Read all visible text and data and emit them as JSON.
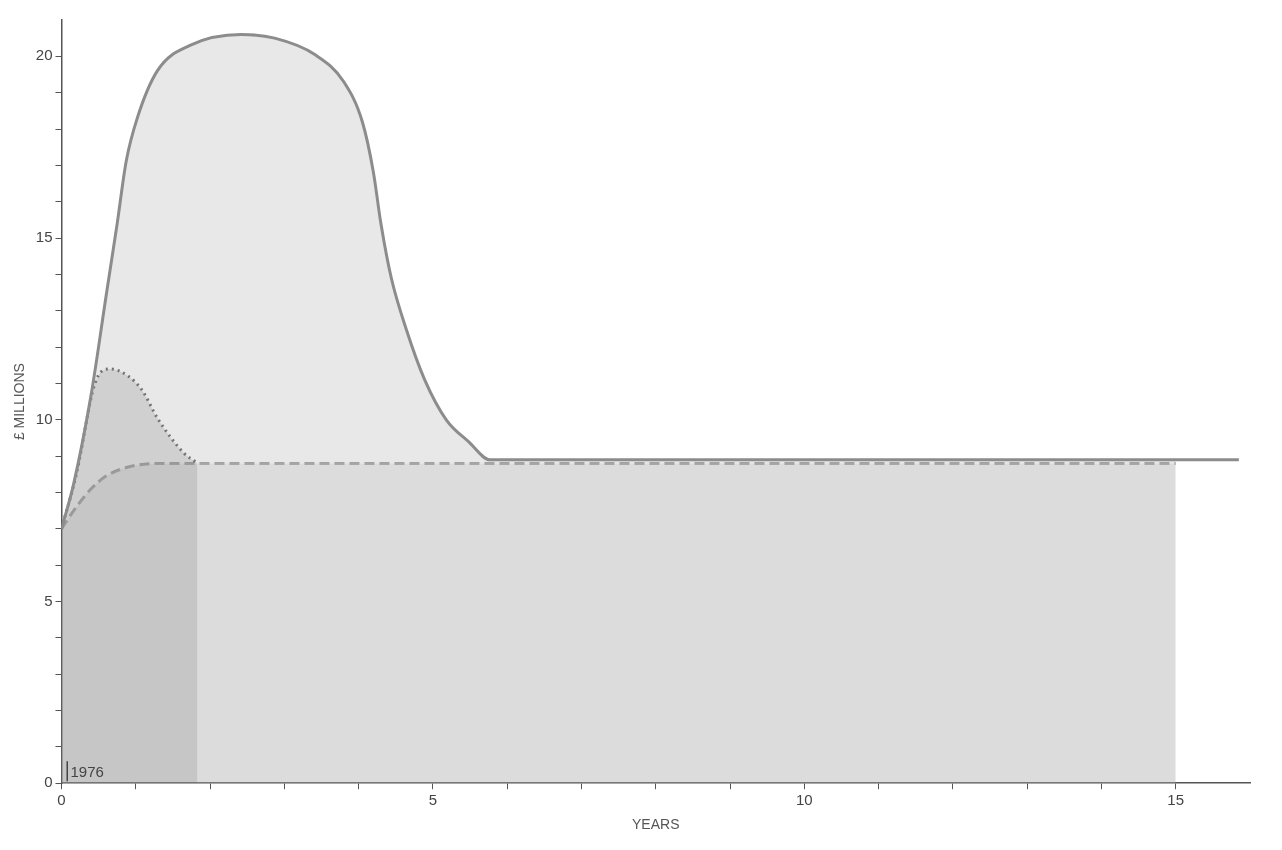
{
  "chart_data": {
    "type": "area",
    "xlabel": "YEARS",
    "ylabel": "£ MILLIONS",
    "xlim": [
      0,
      16
    ],
    "ylim": [
      0,
      21
    ],
    "xticks": [
      0,
      {
        "value": 1,
        "label": null
      },
      {
        "value": 2,
        "label": null
      },
      {
        "value": 3,
        "label": null
      },
      {
        "value": 4,
        "label": null
      },
      5,
      {
        "value": 6,
        "label": null
      },
      {
        "value": 7,
        "label": null
      },
      {
        "value": 8,
        "label": null
      },
      {
        "value": 9,
        "label": null
      },
      10,
      {
        "value": 11,
        "label": null
      },
      {
        "value": 12,
        "label": null
      },
      {
        "value": 13,
        "label": null
      },
      {
        "value": 14,
        "label": null
      },
      15
    ],
    "yticks": [
      0,
      {
        "value": 1,
        "label": null
      },
      {
        "value": 2,
        "label": null
      },
      {
        "value": 3,
        "label": null
      },
      {
        "value": 4,
        "label": null
      },
      5,
      {
        "value": 6,
        "label": null
      },
      {
        "value": 7,
        "label": null
      },
      {
        "value": 8,
        "label": null
      },
      {
        "value": 9,
        "label": null
      },
      10,
      {
        "value": 11,
        "label": null
      },
      {
        "value": 12,
        "label": null
      },
      {
        "value": 13,
        "label": null
      },
      {
        "value": 14,
        "label": null
      },
      15,
      {
        "value": 16,
        "label": null
      },
      {
        "value": 17,
        "label": null
      },
      {
        "value": 18,
        "label": null
      },
      {
        "value": 19,
        "label": null
      },
      20
    ],
    "grid": false,
    "legend": false,
    "marker": "none",
    "annotations": [
      {
        "text": "1976",
        "x": 0,
        "y": 0
      }
    ],
    "series": [
      {
        "color": "#8c8c8c",
        "line_style": "solid",
        "x": [
          0,
          0.16,
          0.4,
          0.6,
          0.75,
          0.87,
          1.02,
          1.29,
          1.73,
          2.42,
          2.87,
          3.41,
          3.8,
          4.05,
          4.2,
          4.3,
          4.44,
          4.64,
          4.89,
          5.18,
          5.48,
          5.77,
          15.85
        ],
        "values": [
          7.0,
          8.2,
          10.7,
          13.4,
          15.4,
          17.1,
          18.3,
          19.6,
          20.3,
          20.6,
          20.5,
          20.05,
          19.3,
          18.2,
          16.8,
          15.4,
          13.9,
          12.5,
          11.1,
          10.0,
          9.4,
          8.9,
          8.9
        ]
      },
      {
        "color": "#6e6e6e",
        "line_style": "dotted",
        "x": [
          0,
          0.2,
          0.45,
          0.65,
          0.9,
          1.09,
          1.29,
          1.64,
          1.83
        ],
        "values": [
          7.0,
          8.5,
          11.0,
          11.4,
          11.2,
          10.8,
          10.05,
          9.1,
          8.8
        ]
      },
      {
        "color": "#a8a8a8",
        "line_style": "dashed",
        "x": [
          0,
          0.2,
          0.4,
          0.6,
          0.9,
          1.3,
          5.77,
          15
        ],
        "values": [
          7.0,
          7.6,
          8.1,
          8.45,
          8.7,
          8.8,
          8.8,
          8.8
        ]
      }
    ]
  }
}
